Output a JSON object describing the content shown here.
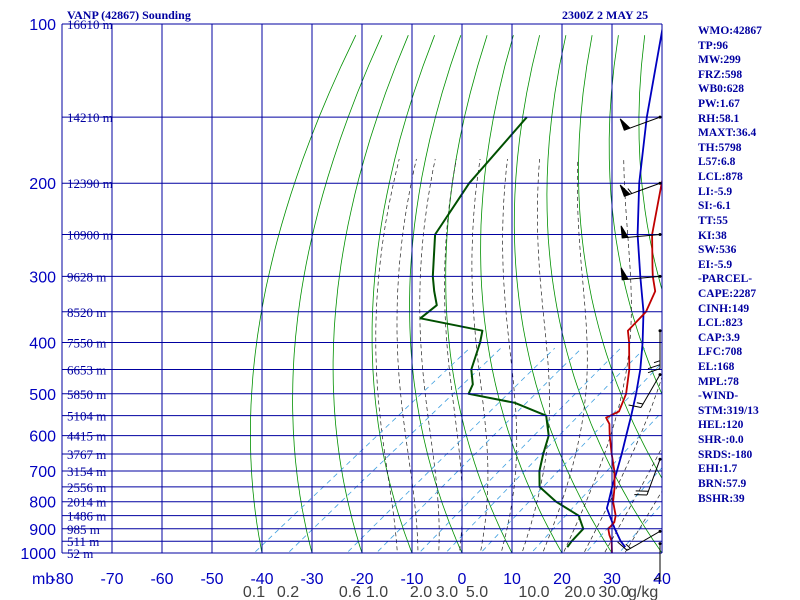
{
  "header": {
    "title": "VANP (42867) Sounding",
    "timestamp": "2300Z  2 MAY 25"
  },
  "stats": [
    "WMO:42867",
    "TP:96",
    "MW:299",
    "FRZ:598",
    "WB0:628",
    "PW:1.67",
    "RH:58.1",
    "MAXT:36.4",
    "TH:5798",
    "L57:6.8",
    "LCL:878",
    "LI:-5.9",
    "SI:-6.1",
    "TT:55",
    "KI:38",
    "SW:536",
    "EI:-5.9",
    "-PARCEL-",
    "CAPE:2287",
    "CINH:149",
    "LCL:823",
    "CAP:3.9",
    "LFC:708",
    "EL:168",
    "MPL:78",
    "-WIND-",
    "STM:319/13",
    "HEL:120",
    "SHR-:0.0",
    "SRDS:-180",
    "EHI:1.7",
    "BRN:57.9",
    "BSHR:39"
  ],
  "colors": {
    "grid": "#0000a0",
    "dry_adiabat": "#009000",
    "moist_adiabat": "#222222",
    "mixing_ratio": "#40a0e0",
    "temperature": "#c00000",
    "dewpoint": "#005000",
    "parcel": "#0000c0",
    "wind": "#000000"
  },
  "chart_data": {
    "type": "line",
    "title": "VANP (42867) Sounding",
    "xlabel": "",
    "ylabel": "mb",
    "x_axis_units": "degC",
    "xlim": [
      -80,
      40
    ],
    "ylim": [
      1000,
      100
    ],
    "y_scale": "log",
    "grid": true,
    "pressure_ticks": [
      100,
      200,
      300,
      400,
      500,
      600,
      700,
      800,
      900,
      1000
    ],
    "pressure_tick_labels": [
      "100",
      "200",
      "300",
      "400",
      "500",
      "600",
      "700",
      "800",
      "900",
      "1000"
    ],
    "temperature_ticks": [
      -80,
      -70,
      -60,
      -50,
      -40,
      -30,
      -20,
      -10,
      0,
      10,
      20,
      30,
      40
    ],
    "temperature_tick_labels": [
      "-80",
      "-70",
      "-60",
      "-50",
      "-40",
      "-30",
      "-20",
      "-10",
      "0",
      "10",
      "20",
      "30",
      "40"
    ],
    "mixing_ratio_labels": [
      "0.1",
      "0.2",
      "0.6",
      "1.0",
      "2.0",
      "3.0",
      "5.0",
      "10.0",
      "20.0",
      "30.0"
    ],
    "mixing_ratio_unit_label": "g/kg",
    "height_labels": [
      {
        "p": 100,
        "text": "16610 m"
      },
      {
        "p": 150,
        "text": "14210 m"
      },
      {
        "p": 200,
        "text": "12390 m"
      },
      {
        "p": 250,
        "text": "10900 m"
      },
      {
        "p": 300,
        "text": "9628 m"
      },
      {
        "p": 350,
        "text": "8520 m"
      },
      {
        "p": 400,
        "text": "7550 m"
      },
      {
        "p": 450,
        "text": "6653 m"
      },
      {
        "p": 500,
        "text": "5850 m"
      },
      {
        "p": 550,
        "text": "5104 m"
      },
      {
        "p": 600,
        "text": "4415 m"
      },
      {
        "p": 650,
        "text": "3767 m"
      },
      {
        "p": 700,
        "text": "3154 m"
      },
      {
        "p": 750,
        "text": "2556 m"
      },
      {
        "p": 800,
        "text": "2014 m"
      },
      {
        "p": 850,
        "text": "1486 m"
      },
      {
        "p": 900,
        "text": "985 m"
      },
      {
        "p": 950,
        "text": "511 m"
      },
      {
        "p": 1000,
        "text": "52 m"
      }
    ],
    "temperature": [
      {
        "p": 1000,
        "t": 30
      },
      {
        "p": 975,
        "t": 28.5
      },
      {
        "p": 950,
        "t": 27
      },
      {
        "p": 925,
        "t": 25
      },
      {
        "p": 900,
        "t": 23.2
      },
      {
        "p": 875,
        "t": 22.8
      },
      {
        "p": 850,
        "t": 21.4
      },
      {
        "p": 800,
        "t": 17.4
      },
      {
        "p": 750,
        "t": 14
      },
      {
        "p": 700,
        "t": 10
      },
      {
        "p": 650,
        "t": 5.2
      },
      {
        "p": 600,
        "t": 0.2
      },
      {
        "p": 570,
        "t": -2.8
      },
      {
        "p": 555,
        "t": -5
      },
      {
        "p": 540,
        "t": -4
      },
      {
        "p": 500,
        "t": -7
      },
      {
        "p": 450,
        "t": -12.4
      },
      {
        "p": 400,
        "t": -19.2
      },
      {
        "p": 380,
        "t": -22.4
      },
      {
        "p": 350,
        "t": -23.5
      },
      {
        "p": 320,
        "t": -26.8
      },
      {
        "p": 300,
        "t": -31
      },
      {
        "p": 290,
        "t": -33
      },
      {
        "p": 250,
        "t": -41.6
      },
      {
        "p": 200,
        "t": -52.5
      },
      {
        "p": 150,
        "t": -66
      },
      {
        "p": 100,
        "t": -85
      }
    ],
    "dewpoint": [
      {
        "p": 975,
        "t": 19.6
      },
      {
        "p": 950,
        "t": 19
      },
      {
        "p": 900,
        "t": 18.2
      },
      {
        "p": 850,
        "t": 14
      },
      {
        "p": 800,
        "t": 6
      },
      {
        "p": 750,
        "t": -1
      },
      {
        "p": 700,
        "t": -5
      },
      {
        "p": 650,
        "t": -8.5
      },
      {
        "p": 600,
        "t": -12
      },
      {
        "p": 550,
        "t": -17.5
      },
      {
        "p": 520,
        "t": -27
      },
      {
        "p": 500,
        "t": -38.5
      },
      {
        "p": 480,
        "t": -40
      },
      {
        "p": 450,
        "t": -44
      },
      {
        "p": 400,
        "t": -49
      },
      {
        "p": 380,
        "t": -51.5
      },
      {
        "p": 360,
        "t": -67
      },
      {
        "p": 340,
        "t": -67
      },
      {
        "p": 320,
        "t": -71
      },
      {
        "p": 300,
        "t": -75
      },
      {
        "p": 250,
        "t": -85
      },
      {
        "p": 200,
        "t": -91
      },
      {
        "p": 150,
        "t": -96
      }
    ],
    "parcel": [
      {
        "p": 975,
        "t": 31.2
      },
      {
        "p": 950,
        "t": 28.8
      },
      {
        "p": 900,
        "t": 24.5
      },
      {
        "p": 850,
        "t": 20.2
      },
      {
        "p": 823,
        "t": 17.8
      },
      {
        "p": 800,
        "t": 16.5
      },
      {
        "p": 750,
        "t": 13.5
      },
      {
        "p": 700,
        "t": 10.5
      },
      {
        "p": 650,
        "t": 7.2
      },
      {
        "p": 600,
        "t": 3.5
      },
      {
        "p": 550,
        "t": -0.5
      },
      {
        "p": 500,
        "t": -5
      },
      {
        "p": 450,
        "t": -10.2
      },
      {
        "p": 400,
        "t": -16.5
      },
      {
        "p": 350,
        "t": -24
      },
      {
        "p": 300,
        "t": -33.5
      },
      {
        "p": 250,
        "t": -44.5
      },
      {
        "p": 200,
        "t": -57
      },
      {
        "p": 150,
        "t": -72
      },
      {
        "p": 100,
        "t": -92
      }
    ],
    "wind_barbs": [
      {
        "p": 960,
        "dir": 180,
        "kt": 5
      },
      {
        "p": 910,
        "dir": 240,
        "kt": 15
      },
      {
        "p": 665,
        "dir": 200,
        "kt": 20
      },
      {
        "p": 460,
        "dir": 210,
        "kt": 15
      },
      {
        "p": 380,
        "dir": 180,
        "kt": 25
      },
      {
        "p": 300,
        "dir": 265,
        "kt": 50
      },
      {
        "p": 250,
        "dir": 265,
        "kt": 50
      },
      {
        "p": 200,
        "dir": 250,
        "kt": 55
      },
      {
        "p": 150,
        "dir": 250,
        "kt": 50
      }
    ]
  }
}
